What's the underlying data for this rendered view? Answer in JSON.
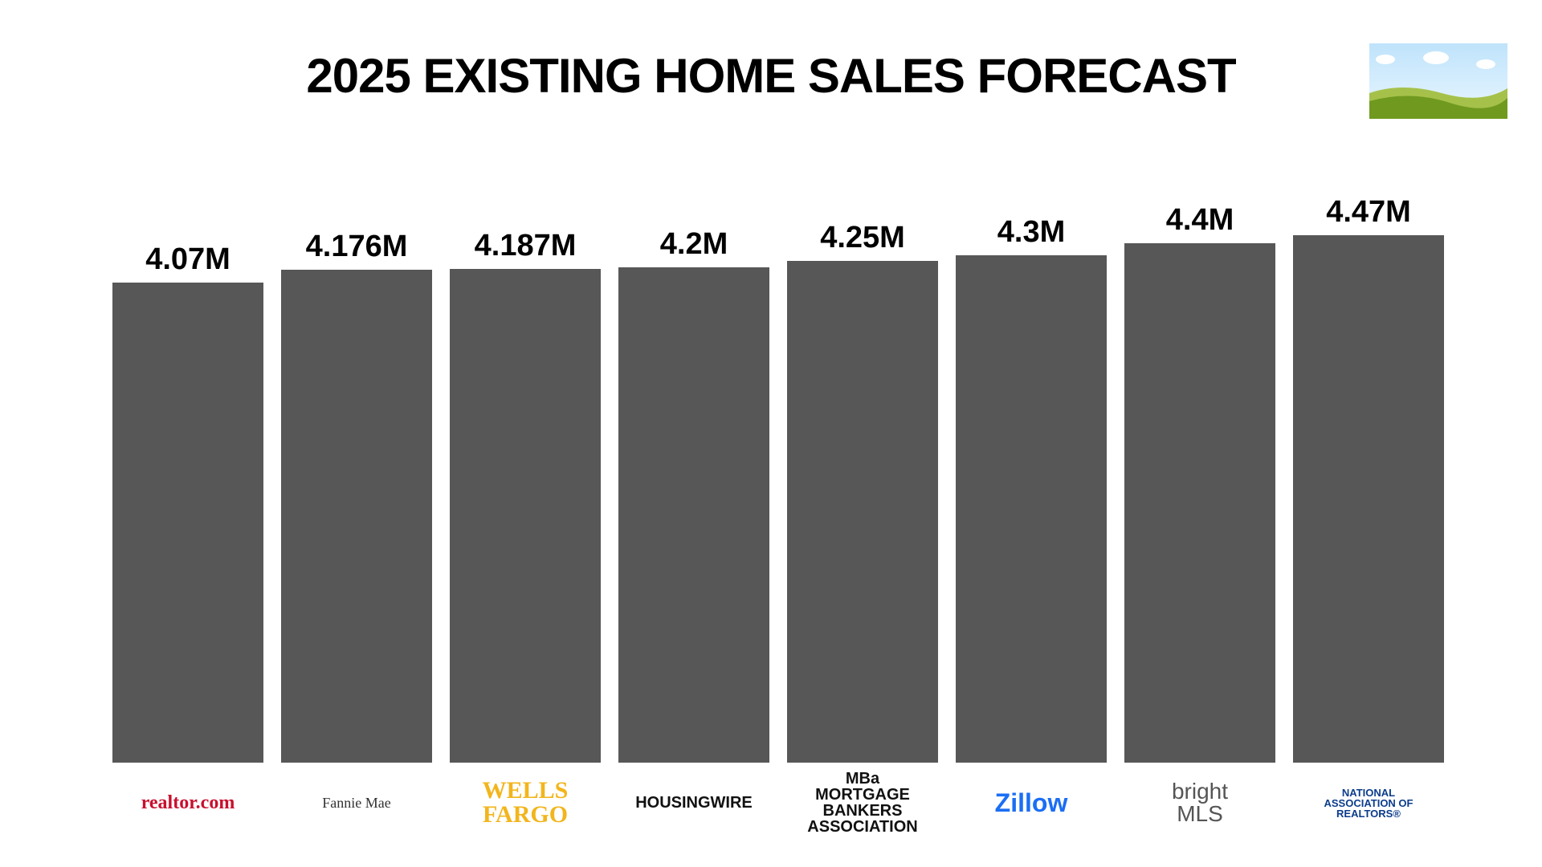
{
  "chart_data": {
    "type": "bar",
    "title": "2025 EXISTING HOME SALES FORECAST",
    "categories": [
      "realtor.com",
      "Fannie Mae",
      "WELLS FARGO",
      "HOUSINGWIRE",
      "MBa MORTGAGE BANKERS ASSOCIATION",
      "Zillow",
      "bright MLS",
      "NATIONAL ASSOCIATION OF REALTORS®"
    ],
    "category_colors": [
      "#c8102e",
      "#333333",
      "#f2b51c",
      "#111111",
      "#111111",
      "#1b6ef5",
      "#555555",
      "#0b3c8c"
    ],
    "values": [
      4.07,
      4.176,
      4.187,
      4.2,
      4.25,
      4.3,
      4.4,
      4.47
    ],
    "value_labels": [
      "4.07M",
      "4.176M",
      "4.187M",
      "4.2M",
      "4.25M",
      "4.3M",
      "4.4M",
      "4.47M"
    ],
    "color": "#575757"
  }
}
